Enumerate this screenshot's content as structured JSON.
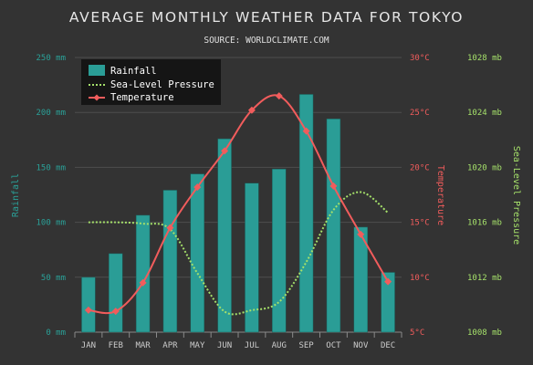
{
  "chart_data": {
    "type": "bar",
    "title": "AVERAGE MONTHLY WEATHER DATA FOR TOKYO",
    "subtitle": "SOURCE: WORLDCLIMATE.COM",
    "categories": [
      "JAN",
      "FEB",
      "MAR",
      "APR",
      "MAY",
      "JUN",
      "JUL",
      "AUG",
      "SEP",
      "OCT",
      "NOV",
      "DEC"
    ],
    "series": [
      {
        "name": "Rainfall",
        "kind": "bar",
        "axis": "rainfall",
        "color": "#2a9d96",
        "values": [
          49.9,
          71.5,
          106.4,
          129.2,
          144.0,
          176.0,
          135.6,
          148.5,
          216.4,
          194.1,
          95.6,
          54.4
        ]
      },
      {
        "name": "Sea-Level Pressure",
        "kind": "line-dotted",
        "axis": "pressure",
        "color": "#a5e06a",
        "values": [
          1016,
          1016,
          1015.9,
          1015.5,
          1012.3,
          1009.5,
          1009.6,
          1010.2,
          1013.1,
          1016.9,
          1018.2,
          1016.7
        ]
      },
      {
        "name": "Temperature",
        "kind": "line-markers",
        "axis": "temperature",
        "color": "#f15c5c",
        "values": [
          7.0,
          6.9,
          9.5,
          14.5,
          18.2,
          21.5,
          25.2,
          26.5,
          23.3,
          18.3,
          13.9,
          9.6
        ]
      }
    ],
    "axes": {
      "rainfall": {
        "label": "Rainfall",
        "min": 0,
        "max": 250,
        "step": 50,
        "suffix": " mm",
        "side": "left",
        "color": "#2aa198"
      },
      "temperature": {
        "label": "Temperature",
        "min": 5,
        "max": 30,
        "step": 5,
        "suffix": "°C",
        "side": "right",
        "color": "#f15c5c"
      },
      "pressure": {
        "label": "Sea-Level Pressure",
        "min": 1008,
        "max": 1028,
        "step": 4,
        "suffix": " mb",
        "side": "right",
        "color": "#a5e06a"
      }
    },
    "grid": true,
    "legend_position": "top-left"
  }
}
